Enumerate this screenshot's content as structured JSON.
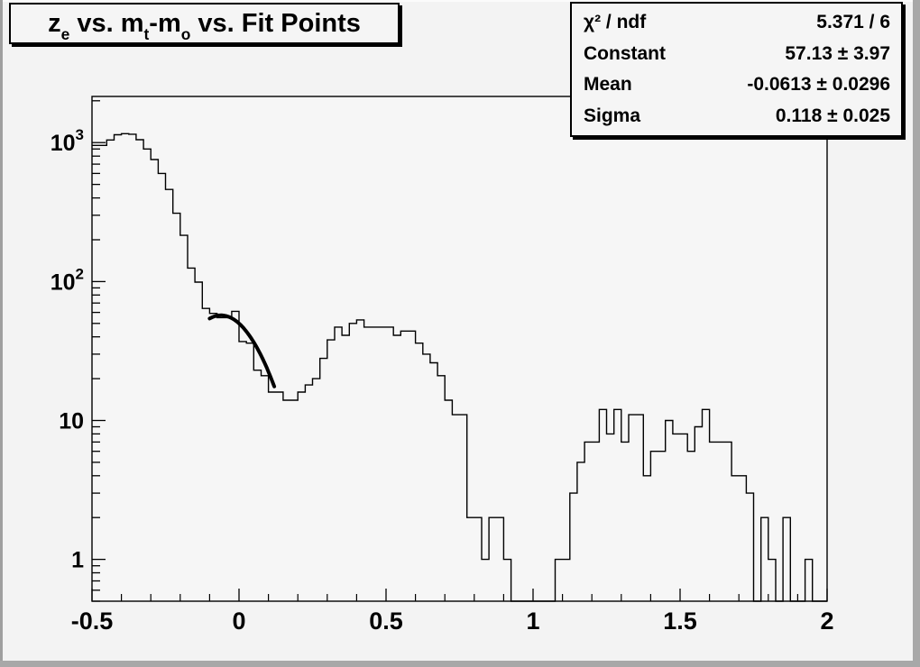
{
  "canvas": {
    "bg": "#f3f3f3",
    "frame_bg": "#f6f6f6",
    "line_color": "#000000",
    "border_dark": "#a8a8a8",
    "border_light": "#fbfbfb",
    "pave_bg": "#f5f5f5"
  },
  "title": {
    "p1": "z",
    "s1": "e",
    "p2": " vs. m",
    "s2": "t",
    "p3": "-m",
    "s3": "o",
    "p4": " vs. Fit Points"
  },
  "stats": {
    "rows": [
      {
        "label": "χ² / ndf",
        "value": "5.371 / 6"
      },
      {
        "label": "Constant",
        "value": "57.13 ± 3.97"
      },
      {
        "label": "Mean",
        "value": "-0.0613 ± 0.0296"
      },
      {
        "label": "Sigma",
        "value": "0.118 ± 0.025"
      }
    ]
  },
  "chart_data": {
    "type": "bar",
    "subtype": "histogram-step-outline",
    "title": "z_e vs. m_t-m_o vs. Fit Points",
    "grid": false,
    "legend": null,
    "x_axis": {
      "label": "",
      "min": -0.5,
      "max": 2,
      "major_ticks": [
        -0.5,
        0,
        0.5,
        1,
        1.5,
        2
      ],
      "major_labels": [
        "-0.5",
        "0",
        "0.5",
        "1",
        "1.5",
        "2"
      ],
      "minor_tick_step": 0.1
    },
    "y_axis": {
      "label": "",
      "scale": "log",
      "min": 0.5,
      "max": 2150,
      "major_ticks": [
        1,
        10,
        100,
        1000
      ],
      "major_labels": [
        {
          "base": "1",
          "exp": ""
        },
        {
          "base": "10",
          "exp": ""
        },
        {
          "base": "10",
          "exp": "2"
        },
        {
          "base": "10",
          "exp": "3"
        }
      ]
    },
    "histogram": {
      "x_start": -0.5,
      "bin_width": 0.025,
      "values": [
        955,
        955,
        1045,
        1140,
        1160,
        1150,
        1050,
        900,
        755,
        600,
        460,
        310,
        215,
        125,
        99,
        64,
        59,
        55,
        55,
        61,
        37,
        36,
        23,
        21,
        16,
        16,
        14,
        14,
        16,
        18,
        20,
        28,
        38,
        47,
        41,
        50,
        53,
        47,
        47,
        47,
        47,
        41,
        44,
        44,
        36,
        30,
        26,
        21,
        14,
        11,
        11,
        2,
        2,
        1,
        2,
        2,
        1,
        0,
        0,
        0,
        0,
        0,
        0,
        1,
        1,
        3,
        5,
        7,
        7,
        12,
        8,
        12,
        7,
        11,
        11,
        4,
        6,
        6,
        10,
        8,
        8,
        6,
        9,
        12,
        7,
        7,
        7,
        4,
        4,
        3,
        0,
        2,
        1,
        0,
        2,
        0,
        0,
        1,
        0,
        0
      ]
    },
    "fit": {
      "model": "gaussian",
      "constant": 57.13,
      "mean": -0.0613,
      "sigma": 0.118,
      "chi2": 5.371,
      "ndf": 6,
      "draw_range": [
        -0.1,
        0.12
      ]
    }
  }
}
